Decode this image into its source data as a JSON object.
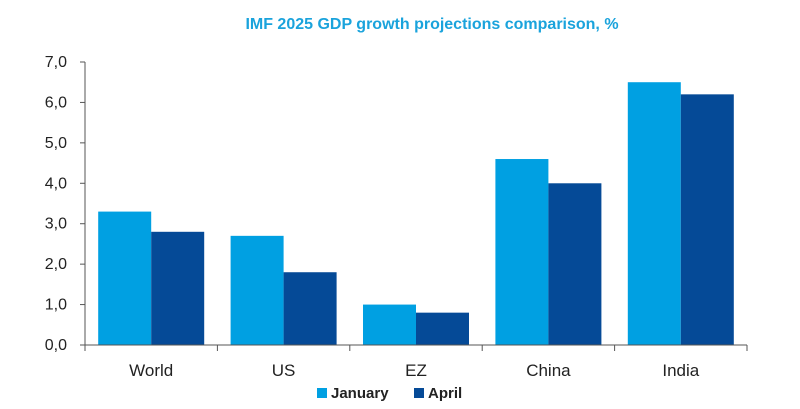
{
  "chart_data": {
    "type": "bar",
    "title": "IMF 2025 GDP growth projections comparison, %",
    "categories": [
      "World",
      "US",
      "EZ",
      "China",
      "India"
    ],
    "series": [
      {
        "name": "January",
        "values": [
          3.3,
          2.7,
          1.0,
          4.6,
          6.5
        ]
      },
      {
        "name": "April",
        "values": [
          2.8,
          1.8,
          0.8,
          4.0,
          6.2
        ]
      }
    ],
    "xlabel": "",
    "ylabel": "",
    "ylim": [
      0,
      7
    ],
    "yticks": [
      "0,0",
      "1,0",
      "2,0",
      "3,0",
      "4,0",
      "5,0",
      "6,0",
      "7,0"
    ],
    "grid": false,
    "legend": "bottom-center"
  },
  "colors": {
    "title": "#1aa3dc",
    "january": "#00a0e2",
    "april": "#054a97",
    "axis": "#555555"
  }
}
